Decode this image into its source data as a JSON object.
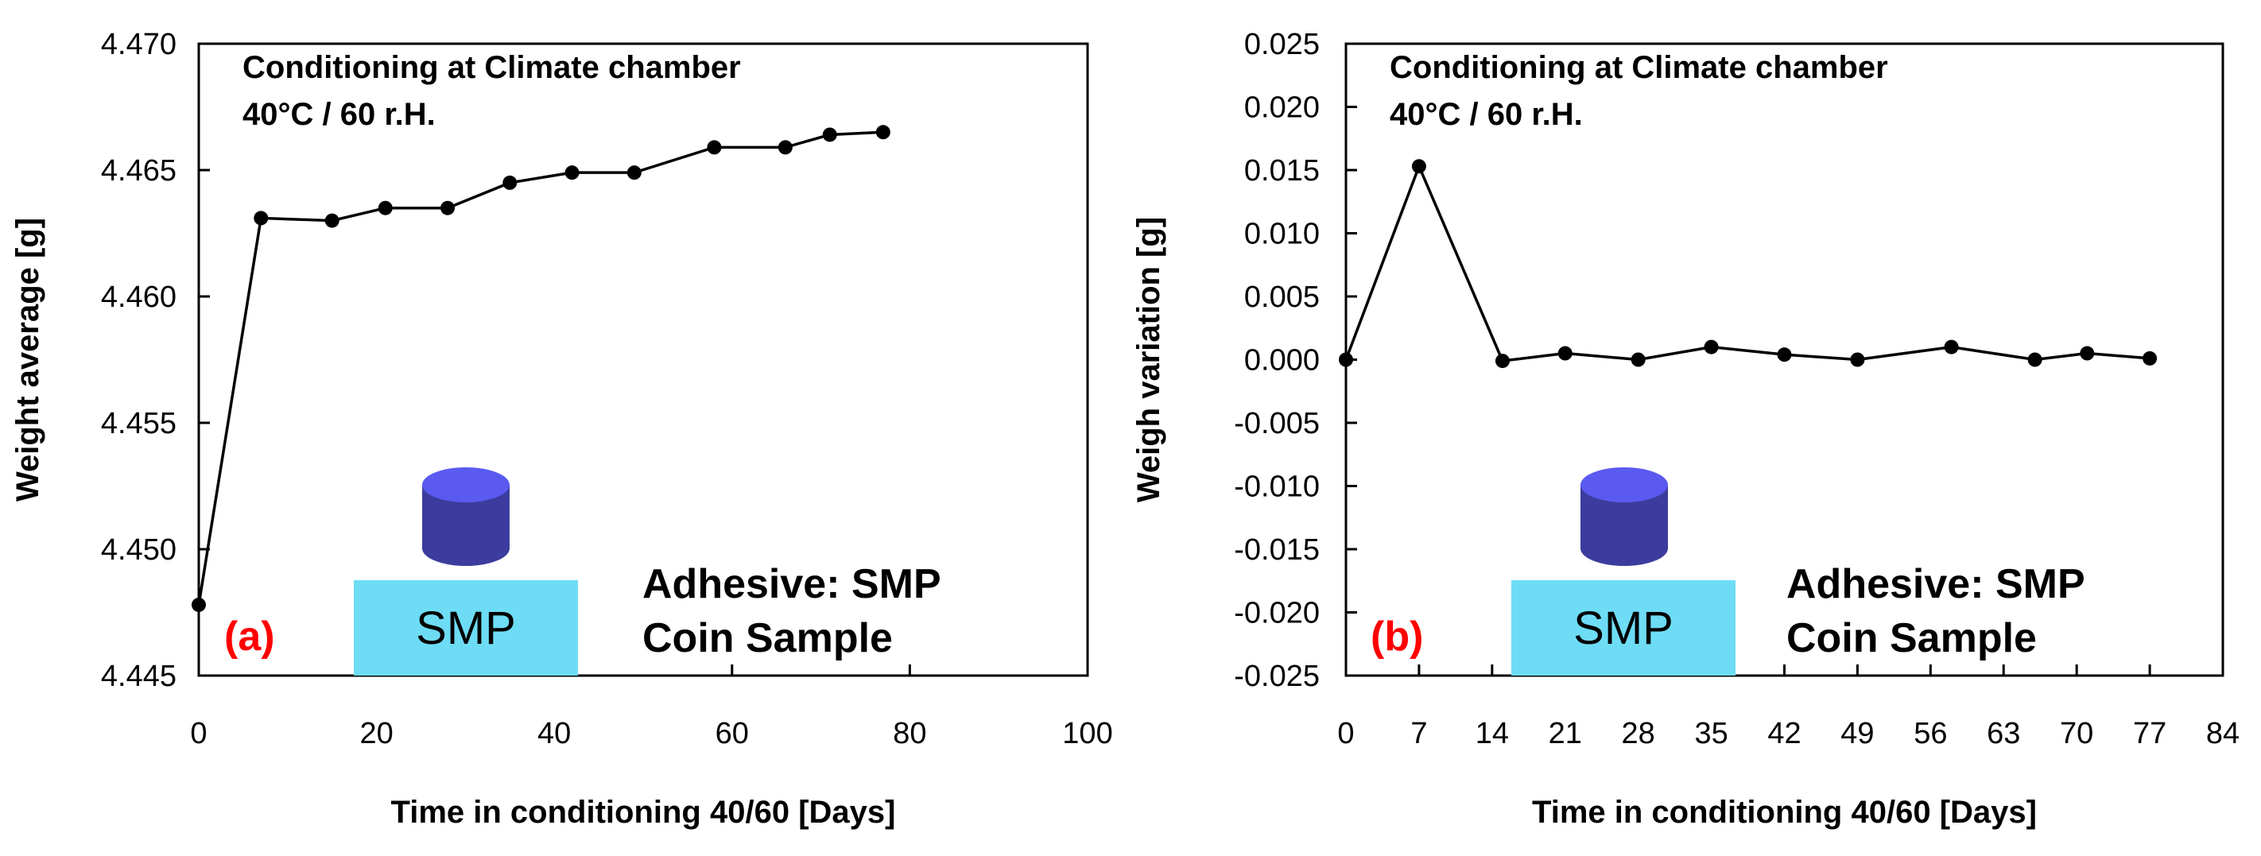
{
  "colors": {
    "line": "#000000",
    "marker": "#000000",
    "substrate": "#6EDCF5",
    "coin_top": "#5A5AF0",
    "coin_side": "#3C3C9E",
    "panel_tag": "#FF0000"
  },
  "icons": {
    "coin": "cylinder-coin-icon",
    "substrate": "smp-substrate-block"
  },
  "chart_data": [
    {
      "type": "line",
      "panel_label": "(a)",
      "ylabel": "Weight average [g]",
      "xlabel": "Time in conditioning 40/60 [Days]",
      "annotation_lines": [
        "Conditioning at Climate chamber",
        "40°C / 60 r.H."
      ],
      "inset_lines": [
        "Adhesive: SMP",
        "Coin Sample"
      ],
      "substrate_label": "SMP",
      "xlim": [
        0,
        100
      ],
      "ylim": [
        4.445,
        4.47
      ],
      "xticks": [
        0,
        20,
        40,
        60,
        80,
        100
      ],
      "xtick_labels": [
        "0",
        "20",
        "40",
        "60",
        "80",
        "100"
      ],
      "yticks": [
        4.445,
        4.45,
        4.455,
        4.46,
        4.465,
        4.47
      ],
      "ytick_labels": [
        "4.445",
        "4.450",
        "4.455",
        "4.460",
        "4.465",
        "4.470"
      ],
      "grid": false,
      "legend": "none",
      "series": [
        {
          "x": [
            0,
            7,
            15,
            21,
            28,
            35,
            42,
            49,
            58,
            66,
            71,
            77
          ],
          "y": [
            4.4478,
            4.4631,
            4.463,
            4.4635,
            4.4635,
            4.4645,
            4.4649,
            4.4649,
            4.4659,
            4.4659,
            4.4664,
            4.4665
          ]
        }
      ]
    },
    {
      "type": "line",
      "panel_label": "(b)",
      "ylabel": "Weigh variation [g]",
      "xlabel": "Time in conditioning 40/60 [Days]",
      "annotation_lines": [
        "Conditioning at Climate chamber",
        "40°C / 60 r.H."
      ],
      "inset_lines": [
        "Adhesive: SMP",
        "Coin Sample"
      ],
      "substrate_label": "SMP",
      "xlim": [
        0,
        84
      ],
      "ylim": [
        -0.025,
        0.025
      ],
      "xticks": [
        0,
        7,
        14,
        21,
        28,
        35,
        42,
        49,
        56,
        63,
        70,
        77,
        84
      ],
      "xtick_labels": [
        "0",
        "7",
        "14",
        "21",
        "28",
        "35",
        "42",
        "49",
        "56",
        "63",
        "70",
        "77",
        "84"
      ],
      "yticks": [
        -0.025,
        -0.02,
        -0.015,
        -0.01,
        -0.005,
        0.0,
        0.005,
        0.01,
        0.015,
        0.02,
        0.025
      ],
      "ytick_labels": [
        "-0.025",
        "-0.020",
        "-0.015",
        "-0.010",
        "-0.005",
        "0.000",
        "0.005",
        "0.010",
        "0.015",
        "0.020",
        "0.025"
      ],
      "grid": false,
      "legend": "none",
      "series": [
        {
          "x": [
            0,
            7,
            15,
            21,
            28,
            35,
            42,
            49,
            58,
            66,
            71,
            77
          ],
          "y": [
            0.0,
            0.0153,
            -0.0001,
            0.0005,
            0.0,
            0.001,
            0.0004,
            0.0,
            0.001,
            0.0,
            0.0005,
            0.0001
          ]
        }
      ]
    }
  ]
}
